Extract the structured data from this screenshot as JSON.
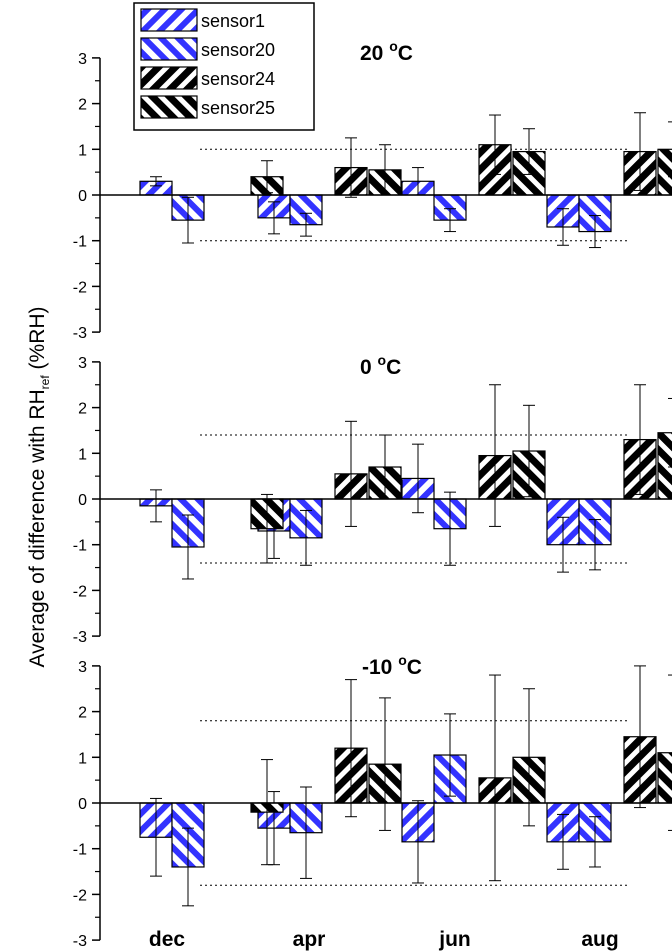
{
  "chart_data": {
    "type": "bar",
    "categories": [
      "dec",
      "apr",
      "jun",
      "aug"
    ],
    "ylabel": {
      "main": "Average of difference with RH",
      "sub": "ref",
      "unit": " (%RH)"
    },
    "yticks": [
      "-3",
      "-2",
      "-1",
      "0",
      "1",
      "2",
      "3"
    ],
    "ylim": [
      -3,
      3
    ],
    "legend": {
      "position": "top-left",
      "entries": [
        {
          "name": "sensor1",
          "fill": "#3333ff",
          "stripe": "back"
        },
        {
          "name": "sensor20",
          "fill": "#3333ff",
          "stripe": "fwd"
        },
        {
          "name": "sensor24",
          "fill": "#000000",
          "stripe": "back"
        },
        {
          "name": "sensor25",
          "fill": "#000000",
          "stripe": "fwd"
        }
      ]
    },
    "panels": [
      {
        "title": "20 ",
        "title_sup": "o",
        "title_unit": "C",
        "threshold": 1.0,
        "series": [
          {
            "name": "sensor1",
            "values": [
              0.3,
              -0.5,
              0.3,
              -0.7
            ],
            "errors": [
              0.1,
              0.35,
              0.3,
              0.4
            ]
          },
          {
            "name": "sensor20",
            "values": [
              -0.55,
              -0.65,
              -0.55,
              -0.8
            ],
            "errors": [
              0.5,
              0.25,
              0.25,
              0.35
            ]
          },
          {
            "name": "sensor24",
            "values": [
              null,
              0.6,
              1.1,
              0.95
            ],
            "errors": [
              null,
              0.65,
              0.65,
              0.85
            ]
          },
          {
            "name": "sensor25",
            "values": [
              0.4,
              0.55,
              0.95,
              1.0
            ],
            "errors": [
              0.35,
              0.55,
              0.5,
              0.6
            ]
          }
        ]
      },
      {
        "title": "0 ",
        "title_sup": "o",
        "title_unit": "C",
        "threshold": 1.4,
        "series": [
          {
            "name": "sensor1",
            "values": [
              -0.15,
              -0.7,
              0.45,
              -1.0
            ],
            "errors": [
              0.35,
              0.6,
              0.75,
              0.6
            ]
          },
          {
            "name": "sensor20",
            "values": [
              -1.05,
              -0.85,
              -0.65,
              -1.0
            ],
            "errors": [
              0.7,
              0.6,
              0.8,
              0.55
            ]
          },
          {
            "name": "sensor24",
            "values": [
              null,
              0.55,
              0.95,
              1.3
            ],
            "errors": [
              null,
              1.15,
              1.55,
              1.2
            ]
          },
          {
            "name": "sensor25",
            "values": [
              -0.65,
              0.7,
              1.05,
              1.45
            ],
            "errors": [
              0.75,
              0.7,
              1.0,
              0.75
            ]
          }
        ]
      },
      {
        "title": "-10 ",
        "title_sup": "o",
        "title_unit": "C",
        "threshold": 1.8,
        "series": [
          {
            "name": "sensor1",
            "values": [
              -0.75,
              -0.55,
              -0.85,
              -0.85
            ],
            "errors": [
              0.85,
              0.8,
              0.9,
              0.6
            ]
          },
          {
            "name": "sensor20",
            "values": [
              -1.4,
              -0.65,
              1.05,
              -0.85
            ],
            "errors": [
              0.85,
              1.0,
              0.9,
              0.55
            ]
          },
          {
            "name": "sensor24",
            "values": [
              null,
              1.2,
              0.55,
              1.45
            ],
            "errors": [
              null,
              1.5,
              2.25,
              1.55
            ]
          },
          {
            "name": "sensor25",
            "values": [
              -0.2,
              0.85,
              1.0,
              1.1
            ],
            "errors": [
              1.15,
              1.45,
              1.5,
              1.7
            ]
          }
        ]
      }
    ]
  }
}
